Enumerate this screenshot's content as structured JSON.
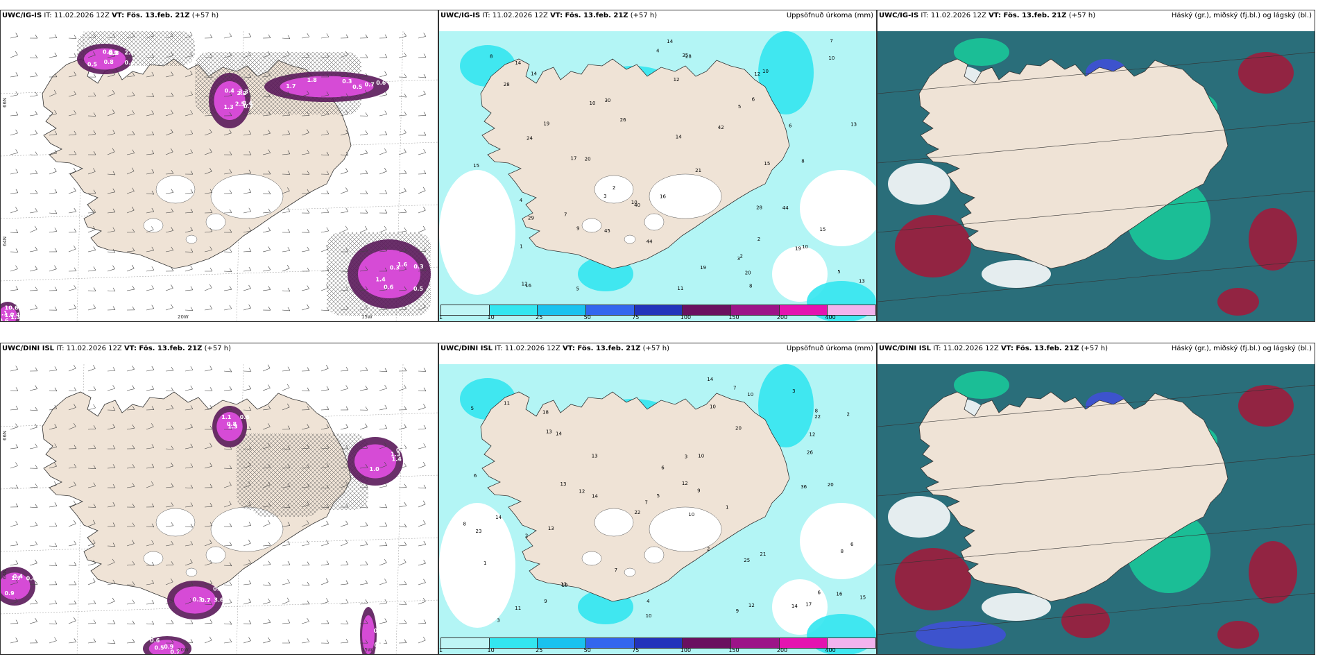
{
  "panels": [
    {
      "model": "UWC/IG-IS",
      "it": "IT: 11.02.2026 12Z",
      "vt": "VT: Fös. 13.feb. 21Z",
      "lead": "(+57 h)",
      "right_title": "",
      "kind": "precip",
      "lon_labels": [
        "20W",
        "15W"
      ],
      "lat_labels": [
        "66N",
        "64N"
      ],
      "values": [
        "0.8",
        "1.3",
        "0.5",
        "0.3",
        "0.6",
        "0.5",
        "2.5",
        "1.8",
        "0.6",
        "0.4",
        "0.8",
        "0.4",
        "0.6",
        "0.3",
        "1.1",
        "0.9",
        "2.2",
        "1.7",
        "1.6",
        "1.3",
        "0.4",
        "3.3",
        "0.7",
        "0.5",
        "1.7",
        "2.1",
        "3.4",
        "0.3",
        "1.4",
        "10.6",
        "0.8",
        "0.7"
      ]
    },
    {
      "model": "UWC/IG-IS",
      "it": "IT: 11.02.2026 12Z",
      "vt": "VT: Fös. 13.feb. 21Z",
      "lead": "(+57 h)",
      "right_title": "Uppsöfnuð úrkoma (mm)",
      "kind": "accum",
      "values": [
        "1",
        "2",
        "3",
        "14",
        "19",
        "10",
        "7",
        "10",
        "15",
        "15",
        "12",
        "14",
        "6",
        "28",
        "24",
        "14",
        "21",
        "12",
        "29",
        "10",
        "8",
        "10",
        "20",
        "35",
        "42",
        "14",
        "26",
        "15",
        "17",
        "28",
        "40",
        "13",
        "20",
        "12",
        "45",
        "44",
        "16",
        "19",
        "19",
        "5",
        "3",
        "13",
        "4",
        "2",
        "7",
        "8",
        "9",
        "10",
        "11",
        "8",
        "30",
        "44",
        "28",
        "16",
        "5",
        "6",
        "5",
        "4",
        "2"
      ],
      "legend_ticks": [
        "1",
        "10",
        "25",
        "50",
        "75",
        "100",
        "150",
        "200",
        "400"
      ]
    },
    {
      "model": "UWC/IG-IS",
      "it": "IT: 11.02.2026 12Z",
      "vt": "VT: Fös. 13.feb. 21Z",
      "lead": "(+57 h)",
      "right_title": "Háský (gr.), miðský (fj.bl.) og lágský (bl.)",
      "kind": "cloud"
    },
    {
      "model": "UWC/DINI ISL",
      "it": "IT: 11.02.2026 12Z",
      "vt": "VT: Fös. 13.feb. 21Z",
      "lead": "(+57 h)",
      "right_title": "",
      "kind": "precip",
      "lon_labels": [
        "20W",
        "15W"
      ],
      "lat_labels": [
        "66N",
        "64N"
      ],
      "values": [
        "0.6",
        "1.4",
        "0.3",
        "0.9",
        "0.7",
        "0.5",
        "1.1",
        "0.8",
        "0.6",
        "0.4",
        "0.5",
        "0.7",
        "0.8",
        "1.3",
        "3.6",
        "0.4",
        "0.9",
        "1.4",
        "1.3",
        "1.0",
        "0.7",
        "1.7",
        "0.6"
      ]
    },
    {
      "model": "UWC/DINI ISL",
      "it": "IT: 11.02.2026 12Z",
      "vt": "VT: Fös. 13.feb. 21Z",
      "lead": "(+57 h)",
      "right_title": "Uppsöfnuð úrkoma (mm)",
      "kind": "accum",
      "values": [
        "10",
        "7",
        "6",
        "10",
        "13",
        "14",
        "14",
        "9",
        "12",
        "10",
        "22",
        "20",
        "16",
        "21",
        "36",
        "18",
        "25",
        "23",
        "13",
        "12",
        "12",
        "11",
        "14",
        "22",
        "20",
        "26",
        "17",
        "15",
        "10",
        "9",
        "8",
        "13",
        "7",
        "12",
        "14",
        "13",
        "10",
        "8",
        "6",
        "6",
        "5",
        "4",
        "3",
        "2",
        "1",
        "3",
        "7",
        "11",
        "2",
        "5",
        "6",
        "8",
        "9",
        "13",
        "10",
        "3",
        "2",
        "1",
        "14"
      ],
      "legend_ticks": [
        "1",
        "10",
        "25",
        "50",
        "75",
        "100",
        "150",
        "200",
        "400"
      ]
    },
    {
      "model": "UWC/DINI ISL",
      "it": "IT: 11.02.2026 12Z",
      "vt": "VT: Fös. 13.feb. 21Z",
      "lead": "(+57 h)",
      "right_title": "Háský (gr.), miðský (fj.bl.) og lágský (bl.)",
      "kind": "cloud"
    }
  ],
  "legend_colors": [
    "#bff5f5",
    "#33e6f0",
    "#1ac2ef",
    "#3366ee",
    "#2233bb",
    "#6a1060",
    "#9c1488",
    "#e414b0",
    "#f2b3ee"
  ],
  "colors": {
    "land": "#efe3d6",
    "sea": "#ffffff",
    "precip_light": "#b3f5f5",
    "precip_magenta": "#d64bd6",
    "precip_dark": "#5a1a5a",
    "cloud_green": "#19c99a",
    "cloud_teal": "#2a6e7a",
    "cloud_red": "#a01a3a",
    "cloud_blue": "#4050d8"
  }
}
